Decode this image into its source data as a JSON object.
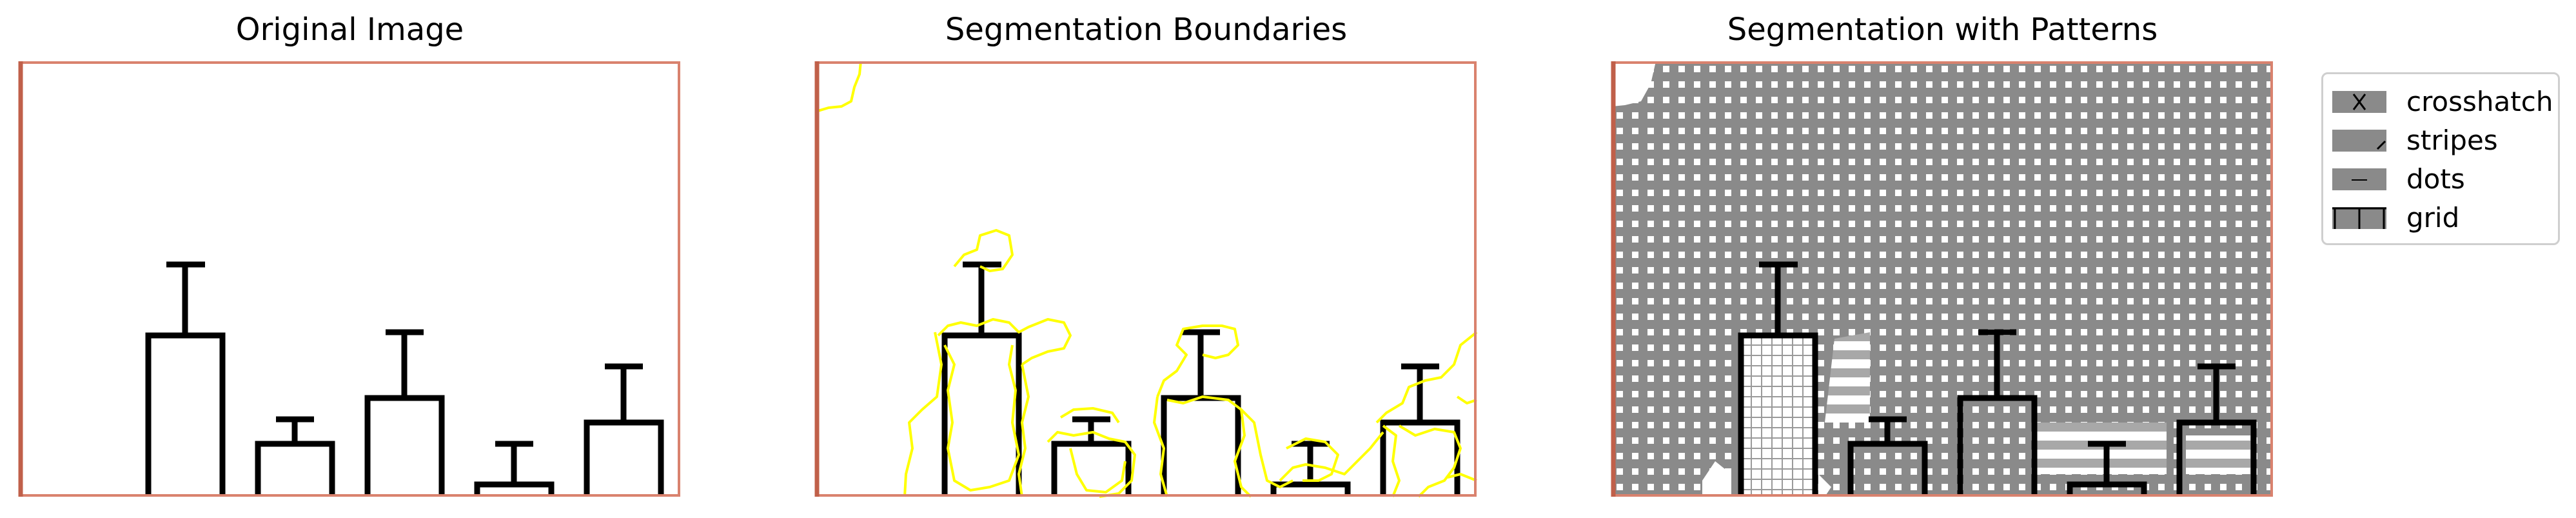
{
  "figure": {
    "panel_titles": [
      "Original Image",
      "Segmentation Boundaries",
      "Segmentation with Patterns"
    ]
  },
  "legend": {
    "items": [
      {
        "label": "crosshatch",
        "icon": "crosshatch-icon"
      },
      {
        "label": "stripes",
        "icon": "stripes-icon"
      },
      {
        "label": "dots",
        "icon": "dots-icon"
      },
      {
        "label": "grid",
        "icon": "grid-icon"
      }
    ]
  },
  "colors": {
    "frame": "#d9826e",
    "boundary": "#ffff00",
    "pattern_fill": "#8a8a8a",
    "bar_stroke": "#000000"
  }
}
